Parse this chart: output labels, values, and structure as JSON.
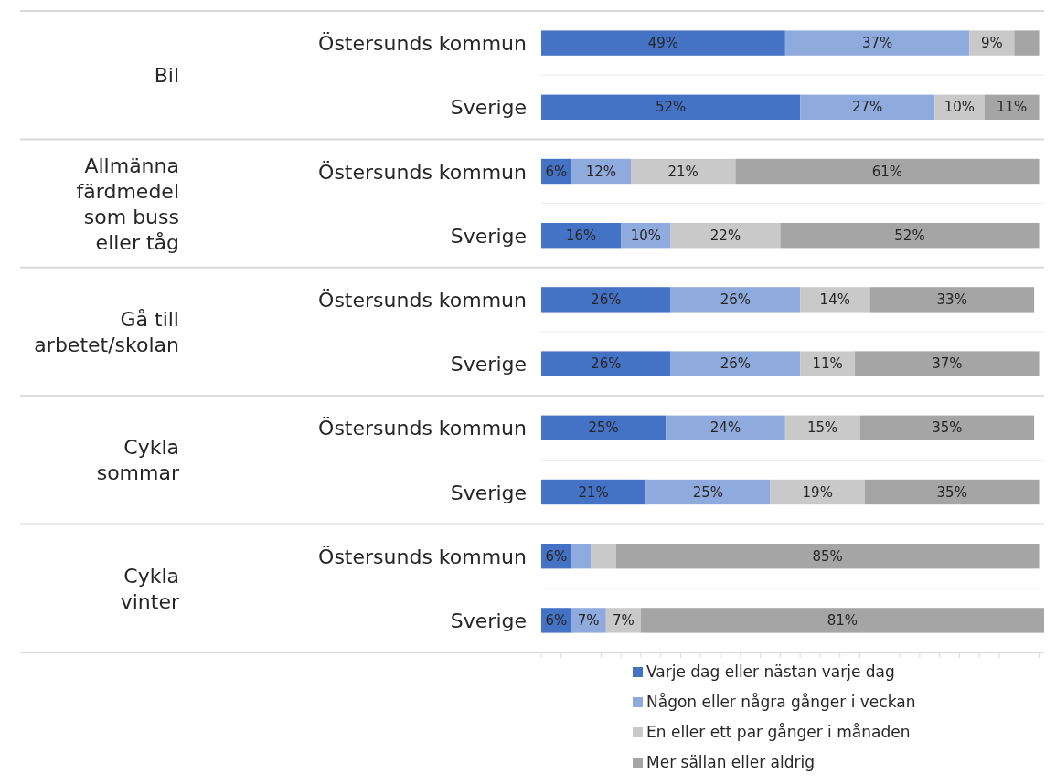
{
  "chart_data": {
    "type": "bar",
    "orientation": "horizontal",
    "stacked": true,
    "categories": [
      "Östersunds kommun",
      "Sverige",
      "Östersunds kommun",
      "Sverige",
      "Östersunds kommun",
      "Sverige",
      "Östersunds kommun",
      "Sverige",
      "Östersunds kommun",
      "Sverige"
    ],
    "annotations": [
      "Bil",
      "Allmänna färdmedel som buss eller tåg",
      "Gå till arbetet/skolan",
      "Cykla sommar",
      "Cykla vinter"
    ],
    "series": [
      {
        "name": "Varje dag eller nästan varje dag",
        "color": "#4472c4",
        "values": [
          49,
          52,
          6,
          16,
          26,
          26,
          25,
          21,
          6,
          6
        ],
        "value_labels": [
          "49%",
          "52%",
          "6%",
          "16%",
          "26%",
          "26%",
          "25%",
          "21%",
          "6%",
          "6%"
        ]
      },
      {
        "name": "Någon eller några gånger i veckan",
        "color": "#8faadc",
        "values": [
          37,
          27,
          12,
          10,
          26,
          26,
          24,
          25,
          4,
          7
        ],
        "value_labels": [
          "37%",
          "27%",
          "12%",
          "10%",
          "26%",
          "26%",
          "24%",
          "25%",
          null,
          "7%"
        ]
      },
      {
        "name": "En eller ett par gånger i månaden",
        "color": "#c9c9c9",
        "values": [
          9,
          10,
          21,
          22,
          14,
          11,
          15,
          19,
          5,
          7
        ],
        "value_labels": [
          "9%",
          "10%",
          "21%",
          "22%",
          "14%",
          "11%",
          "15%",
          "19%",
          null,
          "7%"
        ]
      },
      {
        "name": "Mer sällan eller aldrig",
        "color": "#a5a5a5",
        "values": [
          5,
          11,
          61,
          52,
          33,
          37,
          35,
          35,
          85,
          81
        ],
        "value_labels": [
          null,
          "11%",
          "61%",
          "52%",
          "33%",
          "37%",
          "35%",
          "35%",
          "85%",
          "81%"
        ]
      }
    ],
    "xlim": [
      0,
      101
    ],
    "xticks": [
      {
        "value": 0,
        "label": null
      },
      {
        "value": 4,
        "label": null
      },
      {
        "value": 8,
        "label": null
      },
      {
        "value": 12,
        "label": null
      },
      {
        "value": 16,
        "label": null
      },
      {
        "value": 20,
        "label": null
      },
      {
        "value": 24,
        "label": null
      },
      {
        "value": 28,
        "label": null
      },
      {
        "value": 32,
        "label": null
      },
      {
        "value": 36,
        "label": null
      },
      {
        "value": 40,
        "label": null
      },
      {
        "value": 44,
        "label": null
      },
      {
        "value": 48,
        "label": null
      },
      {
        "value": 52,
        "label": null
      },
      {
        "value": 56,
        "label": null
      },
      {
        "value": 60,
        "label": null
      },
      {
        "value": 64,
        "label": null
      },
      {
        "value": 68,
        "label": null
      },
      {
        "value": 72,
        "label": null
      },
      {
        "value": 76,
        "label": null
      },
      {
        "value": 80,
        "label": null
      },
      {
        "value": 84,
        "label": null
      },
      {
        "value": 88,
        "label": null
      },
      {
        "value": 92,
        "label": null
      },
      {
        "value": 96,
        "label": null
      },
      {
        "value": 100,
        "label": null
      }
    ],
    "tick_labels": "y",
    "grid": "y",
    "legend": "bottom"
  }
}
